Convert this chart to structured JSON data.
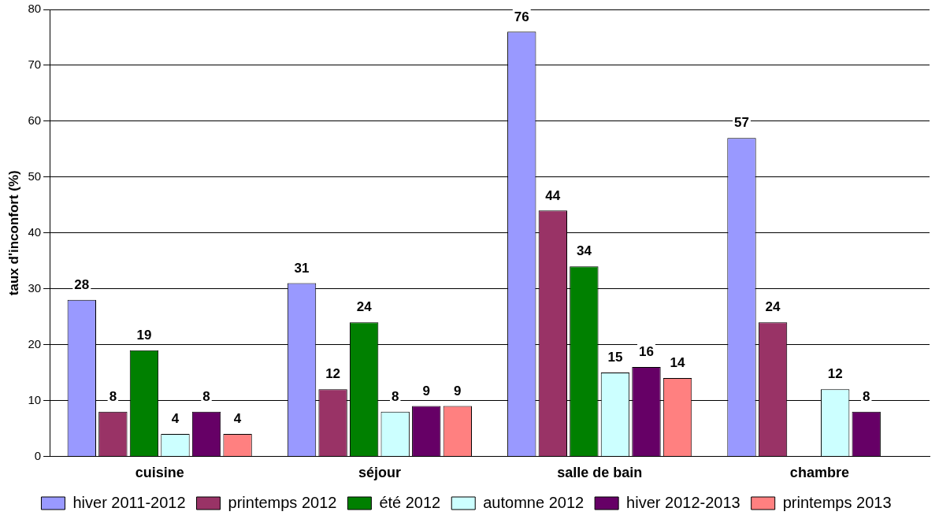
{
  "chart_data": {
    "type": "bar",
    "ylabel": "taux d'inconfort (%)",
    "categories": [
      "cuisine",
      "séjour",
      "salle de bain",
      "chambre"
    ],
    "series": [
      {
        "name": "hiver 2011-2012",
        "color": "#9999ff",
        "values": [
          28,
          31,
          76,
          57
        ]
      },
      {
        "name": "printemps 2012",
        "color": "#993366",
        "values": [
          8,
          12,
          44,
          24
        ]
      },
      {
        "name": "été 2012",
        "color": "#008000",
        "values": [
          19,
          24,
          34,
          null
        ]
      },
      {
        "name": "automne 2012",
        "color": "#ccffff",
        "values": [
          4,
          8,
          15,
          12
        ]
      },
      {
        "name": "hiver 2012-2013",
        "color": "#660066",
        "values": [
          8,
          9,
          16,
          8
        ]
      },
      {
        "name": "printemps 2013",
        "color": "#ff8080",
        "values": [
          4,
          9,
          14,
          null
        ]
      }
    ],
    "ylim": [
      0,
      80
    ],
    "yticks": [
      0,
      10,
      20,
      30,
      40,
      50,
      60,
      70,
      80
    ],
    "grid": "y",
    "legend": "bottom",
    "data_labels": true
  }
}
